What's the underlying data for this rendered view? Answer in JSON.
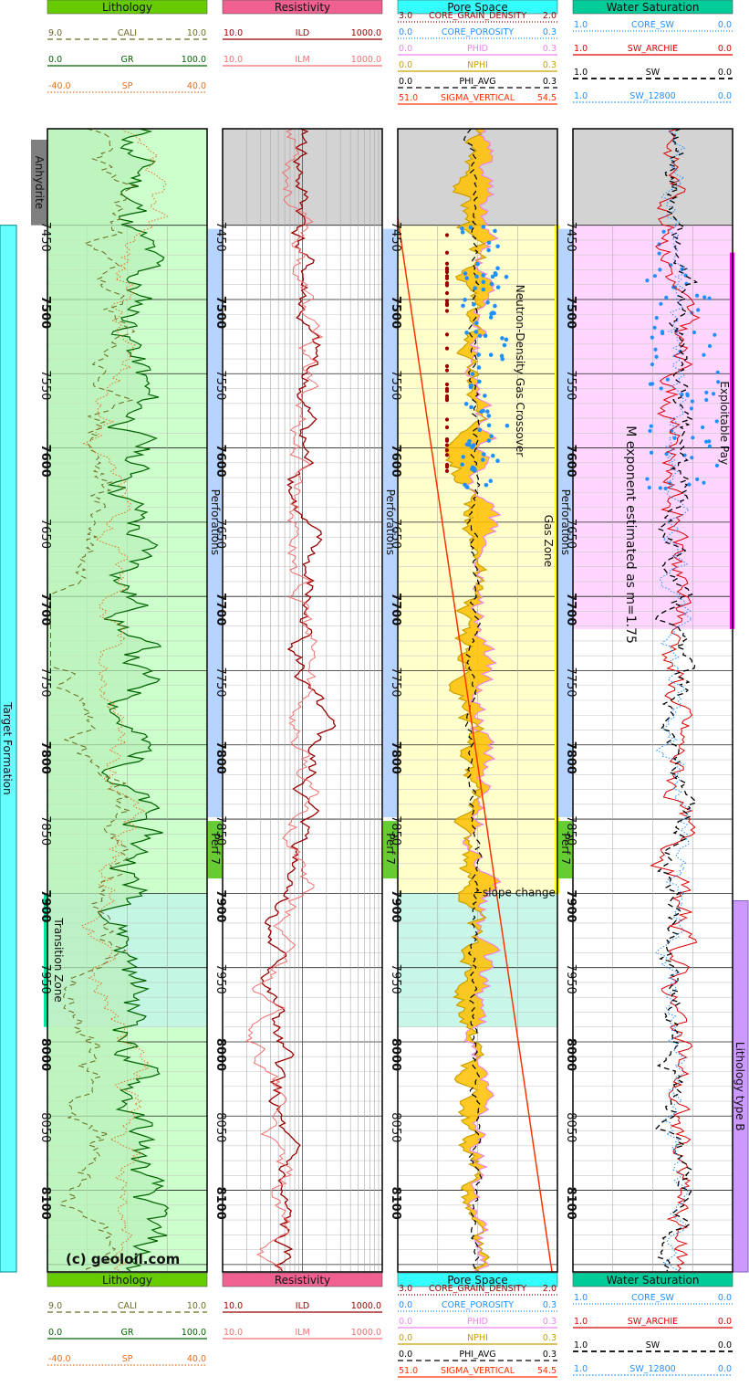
{
  "chart_data": {
    "type": "line",
    "depth_unit": "ft",
    "y_range": [
      7385,
      8155
    ],
    "depth_ticks": [
      7450,
      7500,
      7550,
      7600,
      7650,
      7700,
      7750,
      7800,
      7850,
      7900,
      7950,
      8000,
      8050,
      8100
    ],
    "watermark": "(c) geoloil.com",
    "tracks": [
      {
        "title": "Lithology",
        "header_color": "#66cc00",
        "curves": [
          {
            "name": "CALI",
            "min": "9.0",
            "max": "10.0",
            "color": "#6b6b1f",
            "style": "dashed"
          },
          {
            "name": "GR",
            "min": "0.0",
            "max": "100.0",
            "color": "#006400",
            "style": "solid"
          },
          {
            "name": "SP",
            "min": "-40.0",
            "max": "40.0",
            "color": "#e07020",
            "style": "dotted"
          }
        ]
      },
      {
        "title": "Resistivity",
        "header_color": "#f06090",
        "curves": [
          {
            "name": "ILD",
            "min": "10.0",
            "max": "1000.0",
            "color": "#990000",
            "style": "solid"
          },
          {
            "name": "ILM",
            "min": "10.0",
            "max": "1000.0",
            "color": "#f07070",
            "style": "solid"
          }
        ]
      },
      {
        "title": "Pore Space",
        "header_color": "#33ffff",
        "curves": [
          {
            "name": "CORE_GRAIN_DENSITY",
            "min": "3.0",
            "max": "2.0",
            "color": "#990000",
            "style": "dots"
          },
          {
            "name": "CORE_POROSITY",
            "min": "0.0",
            "max": "0.3",
            "color": "#1e90ff",
            "style": "dots"
          },
          {
            "name": "PHID",
            "min": "0.0",
            "max": "0.3",
            "color": "#ee82ee",
            "style": "solid"
          },
          {
            "name": "NPHI",
            "min": "0.0",
            "max": "0.3",
            "color": "#c8a000",
            "style": "solid"
          },
          {
            "name": "PHI_AVG",
            "min": "0.0",
            "max": "0.3",
            "color": "#000000",
            "style": "dashed"
          },
          {
            "name": "SIGMA_VERTICAL",
            "min": "51.0",
            "max": "54.5",
            "color": "#ff3300",
            "style": "solid"
          }
        ]
      },
      {
        "title": "Water Saturation",
        "header_color": "#00cc99",
        "curves": [
          {
            "name": "CORE_SW",
            "min": "1.0",
            "max": "0.0",
            "color": "#1e90ff",
            "style": "dots"
          },
          {
            "name": "SW_ARCHIE",
            "min": "1.0",
            "max": "0.0",
            "color": "#dd0000",
            "style": "solid"
          },
          {
            "name": "SW",
            "min": "1.0",
            "max": "0.0",
            "color": "#000000",
            "style": "dashed"
          },
          {
            "name": "SW_12800",
            "min": "1.0",
            "max": "0.0",
            "color": "#1e90ff",
            "style": "dotted"
          }
        ]
      }
    ],
    "zones": [
      {
        "name": "Anhydrite",
        "top": 7385,
        "base": 7450,
        "color": "#d3d3d3",
        "bar_color": "#808080"
      },
      {
        "name": "Target Formation",
        "top": 7450,
        "base": 8155,
        "color": "#66ffff"
      },
      {
        "name": "Transition Zone",
        "top": 7900,
        "base": 7990,
        "color": "#00e6a0"
      },
      {
        "name": "Lithology type B",
        "top": 7905,
        "base": 8155,
        "color": "#cc99ff"
      },
      {
        "name": "Gas Zone",
        "top": 7450,
        "base": 7900,
        "color": "#ffff00"
      },
      {
        "name": "Exploitable Pay",
        "top": 7450,
        "base": 7722,
        "color": "#ff00ff"
      }
    ],
    "perforations": [
      {
        "label": "Perforations",
        "top": 7450,
        "base": 7850
      },
      {
        "label": "Perf 7",
        "top": 7850,
        "base": 7890
      }
    ],
    "annotations": [
      {
        "text": "Neutron-Density Gas Crossover",
        "depth": 7490
      },
      {
        "text": "Gas Zone",
        "depth": 7645
      },
      {
        "text": "M exponent estimated as m=1.75",
        "depth": 7585
      },
      {
        "text": "Exploitable Pay",
        "depth": 7555
      },
      {
        "text": "slope change",
        "depth": 7897
      }
    ]
  }
}
